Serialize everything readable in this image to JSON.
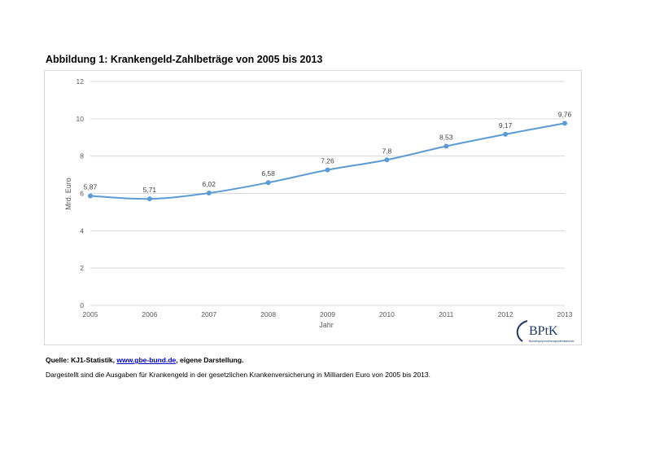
{
  "figure": {
    "title": "Abbildung 1: Krankengeld-Zahlbeträge von 2005 bis 2013",
    "source_prefix": "Quelle: KJ1-Statistik, ",
    "source_link": "www.gbe-bund.de",
    "source_suffix": ", eigene Darstellung.",
    "description": "Dargestellt sind die Ausgaben für Krankengeld in der gesetzlichen Krankenversicherung in Milliarden Euro von 2005 bis 2013.",
    "logo_text": "BPtK",
    "logo_subtext": "Bundespsychotherapeutenkammer"
  },
  "chart_data": {
    "type": "line",
    "title": "",
    "xlabel": "Jahr",
    "ylabel": "Mrd. Euro",
    "categories": [
      "2005",
      "2006",
      "2007",
      "2008",
      "2009",
      "2010",
      "2011",
      "2012",
      "2013"
    ],
    "series": [
      {
        "name": "",
        "values": [
          5.87,
          5.71,
          6.02,
          6.58,
          7.26,
          7.8,
          8.53,
          9.17,
          9.76
        ],
        "labels": [
          "5,87",
          "5,71",
          "6,02",
          "6,58",
          "7,26",
          "7,8",
          "8,53",
          "9,17",
          "9,76"
        ],
        "color": "#5b9bd5"
      }
    ],
    "ylim": [
      0,
      12
    ],
    "yticks": [
      0,
      2,
      4,
      6,
      8,
      10,
      12
    ],
    "grid": true,
    "gridColor": "#d9d9d9",
    "legend": "none"
  }
}
